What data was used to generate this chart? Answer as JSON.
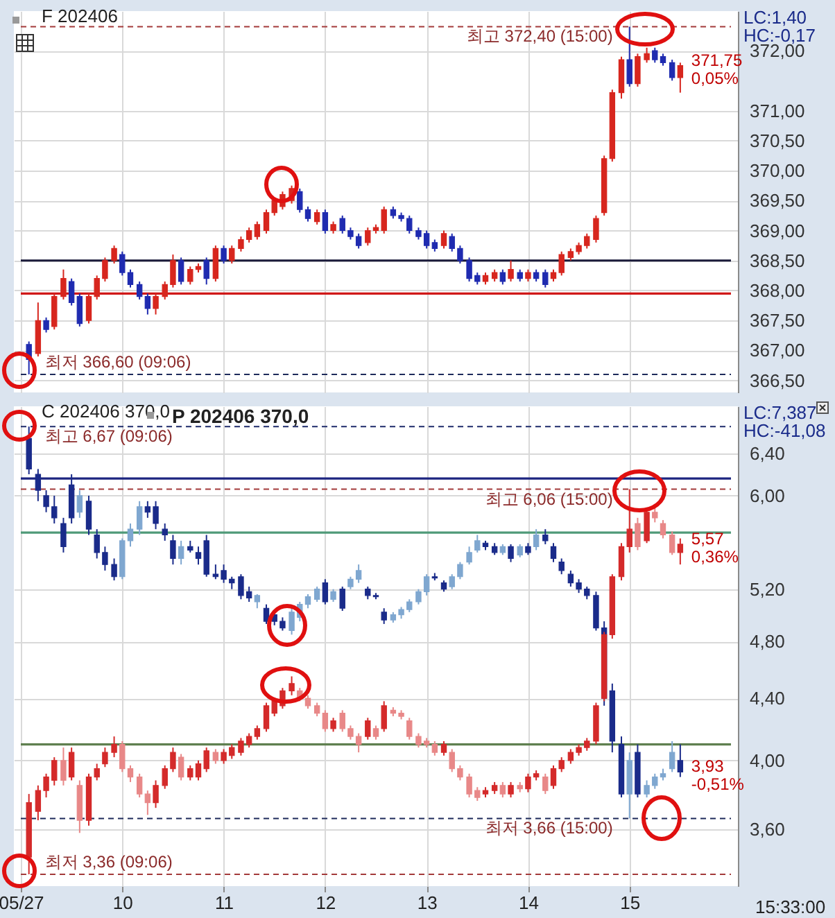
{
  "chart_data": [
    {
      "type": "candlestick",
      "title": "F 202406",
      "tick_labels": "y",
      "grid": true,
      "x": [
        9.08,
        9.17,
        9.25,
        9.33,
        9.42,
        9.5,
        9.58,
        9.67,
        9.75,
        9.83,
        9.92,
        10.0,
        10.08,
        10.17,
        10.25,
        10.33,
        10.42,
        10.5,
        10.58,
        10.67,
        10.75,
        10.83,
        10.92,
        11.0,
        11.08,
        11.17,
        11.25,
        11.33,
        11.42,
        11.5,
        11.58,
        11.67,
        11.75,
        11.83,
        11.92,
        12.0,
        12.08,
        12.17,
        12.25,
        12.33,
        12.42,
        12.5,
        12.58,
        12.67,
        12.75,
        12.83,
        12.92,
        13.0,
        13.08,
        13.17,
        13.25,
        13.33,
        13.42,
        13.5,
        13.58,
        13.67,
        13.75,
        13.83,
        13.92,
        14.0,
        14.08,
        14.17,
        14.25,
        14.33,
        14.42,
        14.5,
        14.58,
        14.67,
        14.75,
        14.83,
        14.92,
        15.0,
        15.08,
        15.17,
        15.25,
        15.33,
        15.42,
        15.5
      ],
      "xlim": [
        9.0,
        16.0
      ],
      "xticks": [
        9,
        10,
        11,
        12,
        13,
        14,
        15
      ],
      "ylim": [
        366.3,
        372.66
      ],
      "yticks": [
        {
          "value": 366.5,
          "label": "366,50"
        },
        {
          "value": 367,
          "label": "367,00"
        },
        {
          "value": 367.5,
          "label": "367,50"
        },
        {
          "value": 368,
          "label": "368,00"
        },
        {
          "value": 368.5,
          "label": "368,50"
        },
        {
          "value": 369,
          "label": "369,00"
        },
        {
          "value": 369.5,
          "label": "369,50"
        },
        {
          "value": 370,
          "label": "370,00"
        },
        {
          "value": 370.5,
          "label": "370,50"
        },
        {
          "value": 371,
          "label": "371,00"
        },
        {
          "value": 372,
          "label": "372,00"
        }
      ],
      "series": [
        {
          "ohlc": [
            [
              367.1,
              367.15,
              366.6,
              366.85
            ],
            [
              366.95,
              367.8,
              366.9,
              367.5
            ],
            [
              367.5,
              367.55,
              367.3,
              367.35
            ],
            [
              367.4,
              367.95,
              367.35,
              367.9
            ],
            [
              367.9,
              368.35,
              367.85,
              368.2
            ],
            [
              368.15,
              368.2,
              367.75,
              367.8
            ],
            [
              367.9,
              367.95,
              367.4,
              367.45
            ],
            [
              367.5,
              367.95,
              367.45,
              367.9
            ],
            [
              367.9,
              368.25,
              367.85,
              368.2
            ],
            [
              368.2,
              368.55,
              368.15,
              368.5
            ],
            [
              368.5,
              368.75,
              368.45,
              368.7
            ],
            [
              368.6,
              368.65,
              368.25,
              368.3
            ],
            [
              368.3,
              368.35,
              368.05,
              368.1
            ],
            [
              368.1,
              368.15,
              367.85,
              367.9
            ],
            [
              367.9,
              367.95,
              367.6,
              367.7
            ],
            [
              367.7,
              367.95,
              367.6,
              367.9
            ],
            [
              367.9,
              368.15,
              367.85,
              368.1
            ],
            [
              368.1,
              368.6,
              368.05,
              368.5
            ],
            [
              368.5,
              368.55,
              368.1,
              368.15
            ],
            [
              368.15,
              368.4,
              368.1,
              368.35
            ],
            [
              368.35,
              368.45,
              368.3,
              368.4
            ],
            [
              368.5,
              368.55,
              368.1,
              368.2
            ],
            [
              368.2,
              368.75,
              368.15,
              368.7
            ],
            [
              368.7,
              368.75,
              368.45,
              368.5
            ],
            [
              368.5,
              368.75,
              368.45,
              368.7
            ],
            [
              368.7,
              368.9,
              368.65,
              368.85
            ],
            [
              368.85,
              369.05,
              368.8,
              369.0
            ],
            [
              368.9,
              369.15,
              368.85,
              369.1
            ],
            [
              369.0,
              369.35,
              368.95,
              369.3
            ],
            [
              369.3,
              369.55,
              369.25,
              369.5
            ],
            [
              369.4,
              369.65,
              369.35,
              369.6
            ],
            [
              369.5,
              369.75,
              369.45,
              369.7
            ],
            [
              369.65,
              369.7,
              369.3,
              369.35
            ],
            [
              369.35,
              369.4,
              369.15,
              369.2
            ],
            [
              369.15,
              369.35,
              369.1,
              369.3
            ],
            [
              369.3,
              369.35,
              368.95,
              369.0
            ],
            [
              369.0,
              369.15,
              368.95,
              369.1
            ],
            [
              369.2,
              369.25,
              368.95,
              369.0
            ],
            [
              369.0,
              369.05,
              368.85,
              368.9
            ],
            [
              368.9,
              368.95,
              368.7,
              368.75
            ],
            [
              368.8,
              369.05,
              368.75,
              369.0
            ],
            [
              369.0,
              369.1,
              368.95,
              369.05
            ],
            [
              369.0,
              369.4,
              368.95,
              369.35
            ],
            [
              369.35,
              369.4,
              369.2,
              369.25
            ],
            [
              369.25,
              369.3,
              369.15,
              369.2
            ],
            [
              369.2,
              369.25,
              368.95,
              369.0
            ],
            [
              369.0,
              369.05,
              368.85,
              368.9
            ],
            [
              368.95,
              369.0,
              368.7,
              368.75
            ],
            [
              368.8,
              368.85,
              368.65,
              368.7
            ],
            [
              368.75,
              369.0,
              368.7,
              368.95
            ],
            [
              368.9,
              368.95,
              368.65,
              368.7
            ],
            [
              368.7,
              368.75,
              368.45,
              368.5
            ],
            [
              368.5,
              368.55,
              368.15,
              368.2
            ],
            [
              368.25,
              368.3,
              368.1,
              368.15
            ],
            [
              368.15,
              368.3,
              368.1,
              368.25
            ],
            [
              368.2,
              368.35,
              368.15,
              368.3
            ],
            [
              368.3,
              368.35,
              368.1,
              368.15
            ],
            [
              368.2,
              368.5,
              368.15,
              368.35
            ],
            [
              368.3,
              368.35,
              368.15,
              368.2
            ],
            [
              368.2,
              368.35,
              368.15,
              368.3
            ],
            [
              368.3,
              368.35,
              368.15,
              368.2
            ],
            [
              368.3,
              368.35,
              368.05,
              368.1
            ],
            [
              368.2,
              368.35,
              368.15,
              368.3
            ],
            [
              368.3,
              368.65,
              368.25,
              368.6
            ],
            [
              368.55,
              368.7,
              368.5,
              368.65
            ],
            [
              368.65,
              368.8,
              368.6,
              368.75
            ],
            [
              368.75,
              368.95,
              368.7,
              368.9
            ],
            [
              368.85,
              369.25,
              368.8,
              369.2
            ],
            [
              369.3,
              370.25,
              369.25,
              370.2
            ],
            [
              370.2,
              371.35,
              370.15,
              371.3
            ],
            [
              371.3,
              371.9,
              371.2,
              371.85
            ],
            [
              371.85,
              372.4,
              371.4,
              371.45
            ],
            [
              371.45,
              371.95,
              371.4,
              371.9
            ],
            [
              371.85,
              372.05,
              371.8,
              371.95
            ],
            [
              372.0,
              372.05,
              371.8,
              371.85
            ],
            [
              371.9,
              371.95,
              371.75,
              371.8
            ],
            [
              371.8,
              371.85,
              371.5,
              371.55
            ],
            [
              371.55,
              371.8,
              371.3,
              371.75
            ]
          ],
          "colors": [
            "#1f2bb0",
            "#d7261e",
            "#1f2bb0",
            "#d7261e",
            "#d7261e",
            "#1f2bb0",
            "#1f2bb0",
            "#d7261e",
            "#d7261e",
            "#d7261e",
            "#d7261e",
            "#1f2bb0",
            "#1f2bb0",
            "#1f2bb0",
            "#1f2bb0",
            "#d7261e",
            "#d7261e",
            "#d7261e",
            "#1f2bb0",
            "#d7261e",
            "#d7261e",
            "#1f2bb0",
            "#d7261e",
            "#1f2bb0",
            "#d7261e",
            "#d7261e",
            "#d7261e",
            "#d7261e",
            "#d7261e",
            "#d7261e",
            "#d7261e",
            "#d7261e",
            "#1f2bb0",
            "#1f2bb0",
            "#d7261e",
            "#1f2bb0",
            "#d7261e",
            "#1f2bb0",
            "#1f2bb0",
            "#1f2bb0",
            "#d7261e",
            "#d7261e",
            "#d7261e",
            "#1f2bb0",
            "#1f2bb0",
            "#1f2bb0",
            "#1f2bb0",
            "#1f2bb0",
            "#1f2bb0",
            "#d7261e",
            "#1f2bb0",
            "#1f2bb0",
            "#1f2bb0",
            "#1f2bb0",
            "#d7261e",
            "#d7261e",
            "#1f2bb0",
            "#d7261e",
            "#1f2bb0",
            "#d7261e",
            "#1f2bb0",
            "#1f2bb0",
            "#d7261e",
            "#d7261e",
            "#d7261e",
            "#d7261e",
            "#d7261e",
            "#d7261e",
            "#d7261e",
            "#d7261e",
            "#d7261e",
            "#1f2bb0",
            "#d7261e",
            "#d7261e",
            "#1f2bb0",
            "#1f2bb0",
            "#1f2bb0",
            "#d7261e"
          ]
        }
      ],
      "ref_lines": [
        {
          "axis": "y",
          "value": 372.4,
          "line_style": "dashed",
          "color": "#a33a3a"
        },
        {
          "axis": "y",
          "value": 366.6,
          "line_style": "dashed",
          "color": "#1e2a5a"
        },
        {
          "axis": "y",
          "value": 368.5,
          "color": "#1a1a3a"
        },
        {
          "axis": "y",
          "value": 367.95,
          "color": "#d01818"
        }
      ],
      "annotations": [
        {
          "text": "최고 372,40 (15:00)",
          "x": 15.0,
          "y": 372.4
        },
        {
          "text": "최저 366,60 (09:06)",
          "x": 9.1,
          "y": 366.6
        },
        "LC:1,40",
        "HC:-0,17",
        {
          "text": "371,75",
          "x": 15.5,
          "y": 371.75
        },
        {
          "text": "0,05%",
          "x": 15.5,
          "y": 371.75
        }
      ]
    },
    {
      "type": "candlestick",
      "title": "C 202406 370,0",
      "subtitle": "P 202406 370,0",
      "xlabel": "15:33:00",
      "grid": true,
      "log": "y",
      "x": [
        9.08,
        9.17,
        9.25,
        9.33,
        9.42,
        9.5,
        9.58,
        9.67,
        9.75,
        9.83,
        9.92,
        10.0,
        10.08,
        10.17,
        10.25,
        10.33,
        10.42,
        10.5,
        10.58,
        10.67,
        10.75,
        10.83,
        10.92,
        11.0,
        11.08,
        11.17,
        11.25,
        11.33,
        11.42,
        11.5,
        11.58,
        11.67,
        11.75,
        11.83,
        11.92,
        12.0,
        12.08,
        12.17,
        12.25,
        12.33,
        12.42,
        12.5,
        12.58,
        12.67,
        12.75,
        12.83,
        12.92,
        13.0,
        13.08,
        13.17,
        13.25,
        13.33,
        13.42,
        13.5,
        13.58,
        13.67,
        13.75,
        13.83,
        13.92,
        14.0,
        14.08,
        14.17,
        14.25,
        14.33,
        14.42,
        14.5,
        14.58,
        14.67,
        14.75,
        14.83,
        14.92,
        15.0,
        15.08,
        15.17,
        15.25,
        15.33,
        15.42,
        15.5
      ],
      "xlim": [
        9.0,
        16.0
      ],
      "xticks": [
        {
          "value": 9,
          "label": "05/27"
        },
        10,
        11,
        12,
        13,
        14,
        15
      ],
      "ylim": [
        3.3,
        6.88
      ],
      "yticks": [
        {
          "value": 3.6,
          "label": "3,60"
        },
        {
          "value": 4.0,
          "label": "4,00"
        },
        {
          "value": 4.4,
          "label": "4,40"
        },
        {
          "value": 4.8,
          "label": "4,80"
        },
        {
          "value": 5.2,
          "label": "5,20"
        },
        {
          "value": 6.0,
          "label": "6,00"
        },
        {
          "value": 6.4,
          "label": "6,40"
        }
      ],
      "series": [
        {
          "ohlc": [
            [
              6.55,
              6.67,
              6.2,
              6.25
            ],
            [
              6.2,
              6.25,
              5.95,
              6.05
            ],
            [
              6.0,
              6.05,
              5.85,
              5.9
            ],
            [
              5.9,
              6.0,
              5.75,
              5.8
            ],
            [
              5.75,
              5.8,
              5.5,
              5.55
            ],
            [
              6.1,
              6.2,
              5.75,
              5.8
            ],
            [
              5.85,
              6.05,
              5.8,
              6.0
            ],
            [
              5.95,
              6.0,
              5.65,
              5.7
            ],
            [
              5.65,
              5.7,
              5.45,
              5.5
            ],
            [
              5.5,
              5.55,
              5.35,
              5.4
            ],
            [
              5.4,
              5.45,
              5.27,
              5.3
            ],
            [
              5.3,
              5.62,
              5.28,
              5.6
            ],
            [
              5.6,
              5.75,
              5.55,
              5.7
            ],
            [
              5.7,
              5.95,
              5.65,
              5.9
            ],
            [
              5.9,
              5.95,
              5.8,
              5.85
            ],
            [
              5.9,
              5.95,
              5.7,
              5.75
            ],
            [
              5.7,
              5.75,
              5.6,
              5.65
            ],
            [
              5.6,
              5.65,
              5.4,
              5.45
            ],
            [
              5.45,
              5.6,
              5.4,
              5.55
            ],
            [
              5.55,
              5.6,
              5.5,
              5.52
            ],
            [
              5.5,
              5.55,
              5.4,
              5.45
            ],
            [
              5.6,
              5.65,
              5.3,
              5.32
            ],
            [
              5.32,
              5.4,
              5.28,
              5.3
            ],
            [
              5.35,
              5.4,
              5.25,
              5.28
            ],
            [
              5.28,
              5.3,
              5.2,
              5.25
            ],
            [
              5.3,
              5.32,
              5.12,
              5.15
            ],
            [
              5.18,
              5.22,
              5.1,
              5.13
            ],
            [
              5.1,
              5.16,
              5.05,
              5.15
            ],
            [
              5.05,
              5.08,
              4.93,
              4.95
            ],
            [
              5.0,
              5.02,
              4.92,
              4.95
            ],
            [
              4.95,
              4.98,
              4.88,
              4.9
            ],
            [
              4.88,
              5.05,
              4.85,
              5.02
            ],
            [
              4.98,
              5.1,
              4.95,
              5.08
            ],
            [
              5.08,
              5.16,
              5.05,
              5.14
            ],
            [
              5.12,
              5.22,
              5.1,
              5.2
            ],
            [
              5.25,
              5.28,
              5.08,
              5.1
            ],
            [
              5.12,
              5.2,
              5.1,
              5.18
            ],
            [
              5.2,
              5.22,
              5.03,
              5.05
            ],
            [
              5.22,
              5.3,
              5.2,
              5.28
            ],
            [
              5.28,
              5.4,
              5.25,
              5.35
            ],
            [
              5.2,
              5.22,
              5.12,
              5.15
            ],
            [
              5.15,
              5.17,
              5.12,
              5.14
            ],
            [
              5.02,
              5.05,
              4.93,
              4.96
            ],
            [
              4.96,
              5.02,
              4.94,
              5.0
            ],
            [
              5.0,
              5.06,
              4.97,
              5.04
            ],
            [
              5.04,
              5.12,
              5.02,
              5.1
            ],
            [
              5.1,
              5.2,
              5.08,
              5.18
            ],
            [
              5.18,
              5.32,
              5.15,
              5.3
            ],
            [
              5.3,
              5.33,
              5.27,
              5.29
            ],
            [
              5.25,
              5.27,
              5.18,
              5.2
            ],
            [
              5.22,
              5.32,
              5.2,
              5.3
            ],
            [
              5.3,
              5.42,
              5.28,
              5.4
            ],
            [
              5.42,
              5.55,
              5.4,
              5.5
            ],
            [
              5.52,
              5.65,
              5.5,
              5.6
            ],
            [
              5.58,
              5.6,
              5.52,
              5.55
            ],
            [
              5.55,
              5.58,
              5.48,
              5.5
            ],
            [
              5.5,
              5.57,
              5.48,
              5.55
            ],
            [
              5.55,
              5.57,
              5.42,
              5.45
            ],
            [
              5.48,
              5.57,
              5.46,
              5.55
            ],
            [
              5.55,
              5.58,
              5.48,
              5.5
            ],
            [
              5.55,
              5.7,
              5.52,
              5.65
            ],
            [
              5.65,
              5.7,
              5.57,
              5.6
            ],
            [
              5.55,
              5.58,
              5.42,
              5.45
            ],
            [
              5.42,
              5.45,
              5.32,
              5.35
            ],
            [
              5.32,
              5.35,
              5.22,
              5.25
            ],
            [
              5.25,
              5.28,
              5.17,
              5.2
            ],
            [
              5.2,
              5.22,
              5.12,
              5.15
            ],
            [
              5.15,
              5.18,
              4.88,
              4.9
            ],
            [
              4.9,
              4.95,
              4.35,
              4.4
            ],
            [
              4.45,
              4.5,
              4.05,
              4.12
            ],
            [
              4.1,
              4.15,
              3.78,
              3.8
            ],
            [
              3.8,
              4.05,
              3.66,
              4.0
            ],
            [
              4.05,
              4.1,
              3.78,
              3.8
            ],
            [
              3.8,
              3.88,
              3.78,
              3.85
            ],
            [
              3.85,
              3.92,
              3.83,
              3.9
            ],
            [
              3.9,
              3.95,
              3.88,
              3.92
            ],
            [
              3.95,
              4.12,
              3.93,
              4.05
            ],
            [
              4.0,
              4.1,
              3.9,
              3.93
            ]
          ],
          "colors": [
            "#1a2b8a",
            "#1a2b8a",
            "#1a2b8a",
            "#1a2b8a",
            "#1a2b8a",
            "#1a2b8a",
            "#7fa7d0",
            "#1a2b8a",
            "#1a2b8a",
            "#1a2b8a",
            "#1a2b8a",
            "#7fa7d0",
            "#7fa7d0",
            "#7fa7d0",
            "#1a2b8a",
            "#1a2b8a",
            "#1a2b8a",
            "#1a2b8a",
            "#7fa7d0",
            "#1a2b8a",
            "#1a2b8a",
            "#1a2b8a",
            "#1a2b8a",
            "#1a2b8a",
            "#1a2b8a",
            "#1a2b8a",
            "#1a2b8a",
            "#7fa7d0",
            "#1a2b8a",
            "#1a2b8a",
            "#1a2b8a",
            "#7fa7d0",
            "#7fa7d0",
            "#7fa7d0",
            "#7fa7d0",
            "#1a2b8a",
            "#7fa7d0",
            "#1a2b8a",
            "#7fa7d0",
            "#7fa7d0",
            "#1a2b8a",
            "#1a2b8a",
            "#1a2b8a",
            "#7fa7d0",
            "#7fa7d0",
            "#7fa7d0",
            "#7fa7d0",
            "#7fa7d0",
            "#1a2b8a",
            "#1a2b8a",
            "#7fa7d0",
            "#7fa7d0",
            "#7fa7d0",
            "#7fa7d0",
            "#1a2b8a",
            "#1a2b8a",
            "#7fa7d0",
            "#1a2b8a",
            "#7fa7d0",
            "#1a2b8a",
            "#7fa7d0",
            "#1a2b8a",
            "#1a2b8a",
            "#1a2b8a",
            "#1a2b8a",
            "#1a2b8a",
            "#1a2b8a",
            "#1a2b8a",
            "#1a2b8a",
            "#1a2b8a",
            "#1a2b8a",
            "#7fa7d0",
            "#1a2b8a",
            "#7fa7d0",
            "#7fa7d0",
            "#7fa7d0",
            "#7fa7d0",
            "#1a2b8a"
          ]
        },
        {
          "ohlc": [
            [
              3.45,
              3.8,
              3.36,
              3.75
            ],
            [
              3.7,
              3.85,
              3.65,
              3.82
            ],
            [
              3.82,
              3.92,
              3.78,
              3.9
            ],
            [
              3.88,
              4.02,
              3.85,
              4.0
            ],
            [
              4.0,
              4.08,
              3.85,
              3.88
            ],
            [
              3.9,
              4.08,
              3.88,
              4.05
            ],
            [
              3.85,
              3.88,
              3.58,
              3.65
            ],
            [
              3.65,
              3.92,
              3.62,
              3.9
            ],
            [
              3.9,
              3.98,
              3.88,
              3.95
            ],
            [
              3.98,
              4.08,
              3.96,
              4.05
            ],
            [
              4.05,
              4.15,
              4.02,
              4.1
            ],
            [
              4.1,
              4.12,
              3.93,
              3.95
            ],
            [
              3.95,
              3.97,
              3.87,
              3.9
            ],
            [
              3.9,
              3.92,
              3.78,
              3.8
            ],
            [
              3.8,
              3.82,
              3.68,
              3.75
            ],
            [
              3.75,
              3.88,
              3.72,
              3.85
            ],
            [
              3.85,
              3.97,
              3.83,
              3.95
            ],
            [
              3.95,
              4.08,
              3.93,
              4.05
            ],
            [
              4.02,
              4.04,
              3.88,
              3.9
            ],
            [
              3.9,
              3.97,
              3.88,
              3.95
            ],
            [
              3.9,
              4.0,
              3.88,
              3.98
            ],
            [
              3.95,
              4.08,
              3.93,
              4.06
            ],
            [
              4.05,
              4.07,
              3.98,
              4.0
            ],
            [
              4.0,
              4.07,
              3.98,
              4.05
            ],
            [
              4.03,
              4.1,
              4.01,
              4.08
            ],
            [
              4.05,
              4.14,
              4.03,
              4.12
            ],
            [
              4.1,
              4.17,
              4.08,
              4.15
            ],
            [
              4.15,
              4.22,
              4.13,
              4.2
            ],
            [
              4.2,
              4.37,
              4.18,
              4.35
            ],
            [
              4.3,
              4.4,
              4.28,
              4.38
            ],
            [
              4.35,
              4.47,
              4.33,
              4.45
            ],
            [
              4.45,
              4.55,
              4.42,
              4.5
            ],
            [
              4.45,
              4.47,
              4.38,
              4.4
            ],
            [
              4.4,
              4.42,
              4.33,
              4.35
            ],
            [
              4.35,
              4.37,
              4.28,
              4.3
            ],
            [
              4.3,
              4.32,
              4.18,
              4.2
            ],
            [
              4.2,
              4.27,
              4.18,
              4.25
            ],
            [
              4.3,
              4.32,
              4.18,
              4.2
            ],
            [
              4.2,
              4.22,
              4.13,
              4.15
            ],
            [
              4.15,
              4.17,
              4.05,
              4.1
            ],
            [
              4.15,
              4.27,
              4.13,
              4.25
            ],
            [
              4.2,
              4.22,
              4.13,
              4.15
            ],
            [
              4.2,
              4.38,
              4.18,
              4.35
            ],
            [
              4.32,
              4.34,
              4.28,
              4.3
            ],
            [
              4.3,
              4.32,
              4.26,
              4.28
            ],
            [
              4.25,
              4.27,
              4.13,
              4.15
            ],
            [
              4.15,
              4.17,
              4.08,
              4.1
            ],
            [
              4.12,
              4.14,
              4.08,
              4.1
            ],
            [
              4.1,
              4.12,
              4.03,
              4.05
            ],
            [
              4.05,
              4.12,
              4.03,
              4.1
            ],
            [
              4.05,
              4.07,
              3.93,
              3.95
            ],
            [
              3.95,
              3.97,
              3.88,
              3.9
            ],
            [
              3.9,
              3.92,
              3.78,
              3.8
            ],
            [
              3.82,
              3.84,
              3.76,
              3.78
            ],
            [
              3.8,
              3.84,
              3.78,
              3.82
            ],
            [
              3.82,
              3.87,
              3.8,
              3.85
            ],
            [
              3.85,
              3.87,
              3.78,
              3.8
            ],
            [
              3.8,
              3.87,
              3.78,
              3.85
            ],
            [
              3.85,
              3.87,
              3.81,
              3.83
            ],
            [
              3.83,
              3.92,
              3.81,
              3.9
            ],
            [
              3.9,
              3.94,
              3.88,
              3.92
            ],
            [
              3.9,
              3.92,
              3.8,
              3.82
            ],
            [
              3.85,
              3.97,
              3.83,
              3.95
            ],
            [
              3.95,
              4.02,
              3.93,
              4.0
            ],
            [
              4.0,
              4.07,
              3.98,
              4.05
            ],
            [
              4.05,
              4.1,
              4.03,
              4.08
            ],
            [
              4.08,
              4.14,
              4.06,
              4.12
            ],
            [
              4.12,
              4.37,
              4.1,
              4.35
            ],
            [
              4.4,
              4.87,
              4.38,
              4.85
            ],
            [
              4.85,
              5.32,
              4.82,
              5.3
            ],
            [
              5.3,
              5.58,
              5.27,
              5.55
            ],
            [
              5.55,
              6.06,
              5.5,
              5.7
            ],
            [
              5.75,
              5.8,
              5.52,
              5.55
            ],
            [
              5.6,
              5.88,
              5.58,
              5.85
            ],
            [
              5.85,
              5.9,
              5.76,
              5.8
            ],
            [
              5.75,
              5.78,
              5.62,
              5.65
            ],
            [
              5.65,
              5.68,
              5.48,
              5.5
            ],
            [
              5.5,
              5.62,
              5.4,
              5.57
            ]
          ],
          "colors": [
            "#d42a2a",
            "#d42a2a",
            "#d42a2a",
            "#d42a2a",
            "#e88888",
            "#d42a2a",
            "#e88888",
            "#d42a2a",
            "#d42a2a",
            "#d42a2a",
            "#d42a2a",
            "#e88888",
            "#e88888",
            "#e88888",
            "#e88888",
            "#d42a2a",
            "#d42a2a",
            "#d42a2a",
            "#e88888",
            "#d42a2a",
            "#d42a2a",
            "#d42a2a",
            "#e88888",
            "#d42a2a",
            "#d42a2a",
            "#d42a2a",
            "#d42a2a",
            "#d42a2a",
            "#d42a2a",
            "#d42a2a",
            "#d42a2a",
            "#d42a2a",
            "#e88888",
            "#e88888",
            "#e88888",
            "#e88888",
            "#d42a2a",
            "#e88888",
            "#e88888",
            "#e88888",
            "#d42a2a",
            "#e88888",
            "#d42a2a",
            "#e88888",
            "#e88888",
            "#e88888",
            "#e88888",
            "#e88888",
            "#e88888",
            "#d42a2a",
            "#e88888",
            "#e88888",
            "#e88888",
            "#e88888",
            "#d42a2a",
            "#d42a2a",
            "#e88888",
            "#d42a2a",
            "#e88888",
            "#d42a2a",
            "#d42a2a",
            "#e88888",
            "#d42a2a",
            "#d42a2a",
            "#d42a2a",
            "#d42a2a",
            "#d42a2a",
            "#d42a2a",
            "#d42a2a",
            "#d42a2a",
            "#d42a2a",
            "#d42a2a",
            "#e88888",
            "#d42a2a",
            "#e88888",
            "#e88888",
            "#e88888",
            "#d42a2a"
          ]
        }
      ],
      "ref_lines": [
        {
          "axis": "y",
          "value": 6.67,
          "line_style": "dashed",
          "color": "#1e2a6a"
        },
        {
          "axis": "y",
          "value": 6.06,
          "line_style": "dashed",
          "color": "#a33a3a"
        },
        {
          "axis": "y",
          "value": 3.66,
          "line_style": "dashed",
          "color": "#1e2a5a"
        },
        {
          "axis": "y",
          "value": 3.36,
          "line_style": "dashed",
          "color": "#a33a3a"
        },
        {
          "axis": "y",
          "value": 6.16,
          "color": "#1c2580"
        },
        {
          "axis": "y",
          "value": 5.67,
          "color": "#4f9a78"
        },
        {
          "axis": "y",
          "value": 4.1,
          "color": "#5f7f4f"
        }
      ],
      "annotations": [
        {
          "text": "최고 6,67 (09:06)",
          "x": 9.1,
          "y": 6.67
        },
        {
          "text": "최고 6,06 (15:00)",
          "x": 15.0,
          "y": 6.06
        },
        {
          "text": "최저 3,66 (15:00)",
          "x": 15.0,
          "y": 3.66
        },
        {
          "text": "최저 3,36 (09:06)",
          "x": 9.1,
          "y": 3.36
        },
        "LC:7,387",
        "HC:-41,08",
        {
          "text": "5,57",
          "x": 15.5,
          "y": 5.57
        },
        {
          "text": "0,36%",
          "x": 15.5,
          "y": 5.57
        },
        {
          "text": "3,93",
          "x": 15.5,
          "y": 3.93
        },
        {
          "text": "-0,51%",
          "x": 15.5,
          "y": 3.93
        }
      ]
    }
  ]
}
